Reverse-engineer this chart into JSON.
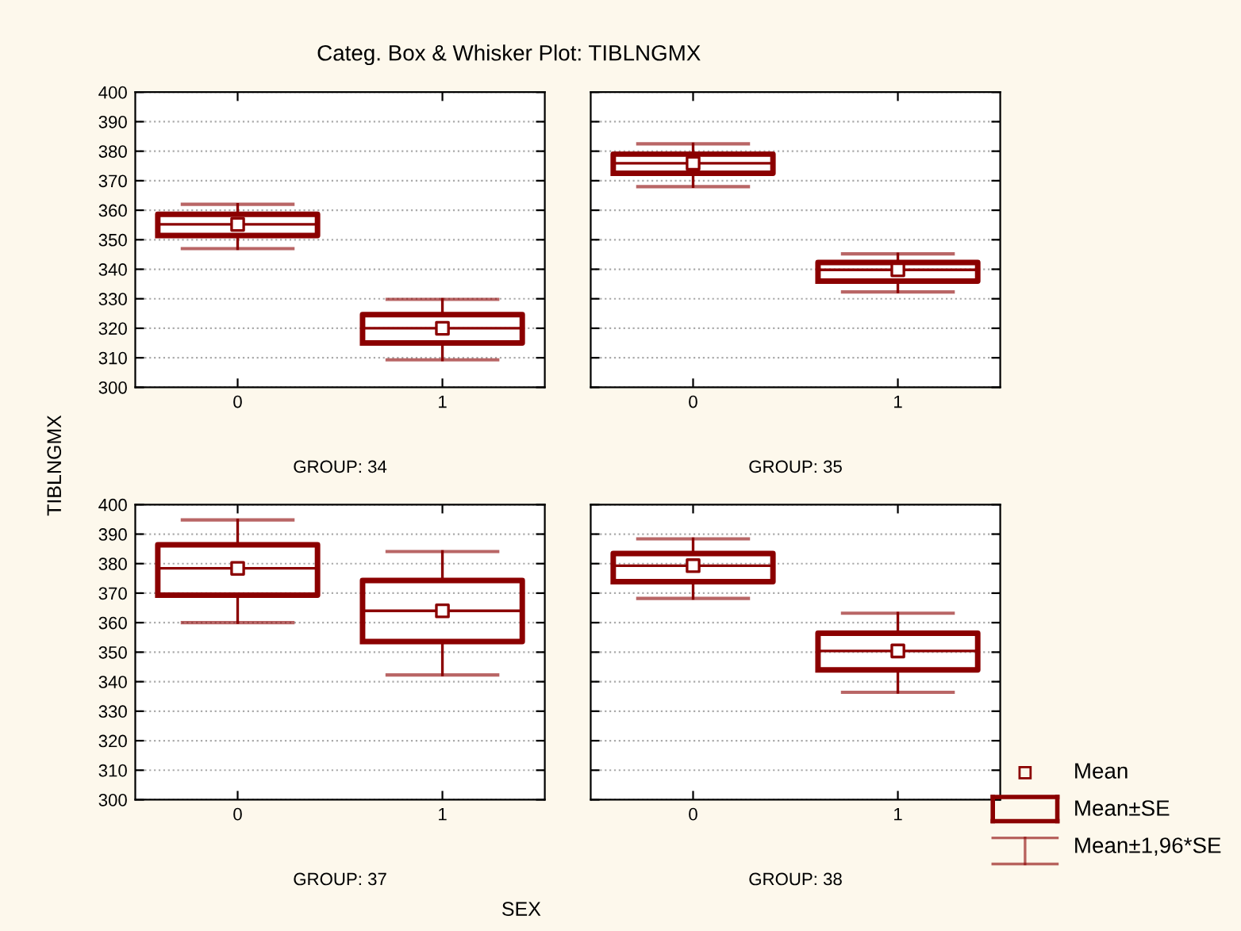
{
  "chart_data": [
    {
      "type": "box",
      "title": "Categ. Box & Whisker Plot: TIBLNGMX",
      "ylabel": "TIBLNGMX",
      "xlabel": "GROUP: 34",
      "annotations": [
        "SEX"
      ],
      "categories": [
        "0",
        "1"
      ],
      "boxes": [
        {
          "low": 347,
          "q1": 351.4,
          "median": 355.2,
          "q3": 358.6,
          "high": 362,
          "mean": 355.2
        },
        {
          "low": 309.3,
          "q1": 315,
          "median": 320,
          "q3": 324.6,
          "high": 329.8,
          "mean": 320
        }
      ],
      "color": "#8b0000",
      "ylim": [
        300,
        400
      ],
      "yticks": [
        300,
        310,
        320,
        330,
        340,
        350,
        360,
        370,
        380,
        390,
        400
      ],
      "grid": "y"
    },
    {
      "type": "box",
      "xlabel": "GROUP: 35",
      "categories": [
        "0",
        "1"
      ],
      "boxes": [
        {
          "low": 368,
          "q1": 372.5,
          "median": 375.9,
          "q3": 379,
          "high": 382.5,
          "mean": 375.9
        },
        {
          "low": 332.3,
          "q1": 336,
          "median": 339.8,
          "q3": 342.3,
          "high": 345.2,
          "mean": 339.8
        }
      ],
      "color": "#8b0000",
      "ylim": [
        300,
        400
      ],
      "yticks": [
        300,
        310,
        320,
        330,
        340,
        350,
        360,
        370,
        380,
        390,
        400
      ],
      "grid": "y",
      "tick_labels": "x"
    },
    {
      "type": "box",
      "xlabel": "GROUP: 37",
      "categories": [
        "0",
        "1"
      ],
      "boxes": [
        {
          "low": 360,
          "q1": 369.3,
          "median": 378.4,
          "q3": 386.4,
          "high": 394.8,
          "mean": 378.4
        },
        {
          "low": 342.3,
          "q1": 353.6,
          "median": 364,
          "q3": 374.3,
          "high": 384.1,
          "mean": 364
        }
      ],
      "color": "#8b0000",
      "ylim": [
        300,
        400
      ],
      "yticks": [
        300,
        310,
        320,
        330,
        340,
        350,
        360,
        370,
        380,
        390,
        400
      ],
      "grid": "y"
    },
    {
      "type": "box",
      "xlabel": "GROUP: 38",
      "categories": [
        "0",
        "1"
      ],
      "boxes": [
        {
          "low": 368.2,
          "q1": 373.9,
          "median": 379.3,
          "q3": 383.4,
          "high": 388.4,
          "mean": 379.3
        },
        {
          "low": 336.4,
          "q1": 344,
          "median": 350.4,
          "q3": 356.4,
          "high": 363.2,
          "mean": 350.4
        }
      ],
      "color": "#8b0000",
      "ylim": [
        300,
        400
      ],
      "yticks": [
        300,
        310,
        320,
        330,
        340,
        350,
        360,
        370,
        380,
        390,
        400
      ],
      "grid": "y",
      "tick_labels": "x",
      "annotations": [
        "Mean",
        "Mean±SE",
        "Mean±1,96*SE"
      ]
    }
  ]
}
